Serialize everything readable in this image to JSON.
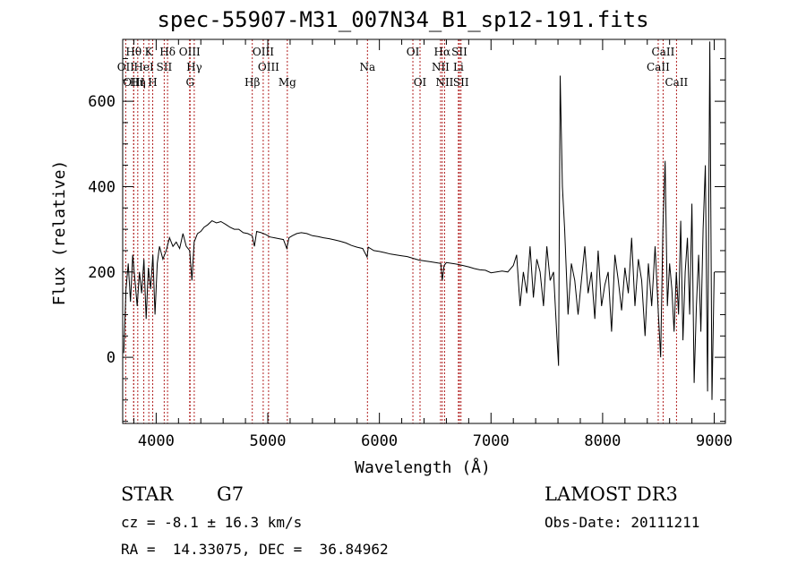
{
  "chart_data": {
    "type": "line",
    "title": "spec-55907-M31_007N34_B1_sp12-191.fits",
    "xlabel": "Wavelength (Å)",
    "ylabel": "Flux (relative)",
    "xlim": [
      3700,
      9100
    ],
    "ylim": [
      -155,
      745
    ],
    "x_ticks": [
      4000,
      5000,
      6000,
      7000,
      8000,
      9000
    ],
    "y_ticks": [
      0,
      200,
      400,
      600
    ],
    "x_tick_labels": [
      "4000",
      "5000",
      "6000",
      "7000",
      "8000",
      "9000"
    ],
    "y_tick_labels": [
      "0",
      "200",
      "400",
      "600"
    ],
    "series": [
      {
        "name": "flux",
        "x": [
          3710,
          3730,
          3750,
          3770,
          3790,
          3810,
          3830,
          3850,
          3870,
          3890,
          3910,
          3930,
          3950,
          3970,
          3990,
          4010,
          4030,
          4060,
          4090,
          4120,
          4150,
          4180,
          4210,
          4240,
          4270,
          4300,
          4320,
          4340,
          4370,
          4400,
          4430,
          4460,
          4500,
          4540,
          4580,
          4620,
          4660,
          4700,
          4740,
          4780,
          4820,
          4860,
          4880,
          4900,
          4940,
          4980,
          5020,
          5060,
          5100,
          5140,
          5170,
          5190,
          5220,
          5260,
          5300,
          5350,
          5400,
          5450,
          5500,
          5550,
          5600,
          5650,
          5700,
          5750,
          5800,
          5850,
          5890,
          5900,
          5950,
          6000,
          6050,
          6100,
          6150,
          6200,
          6250,
          6300,
          6350,
          6400,
          6450,
          6500,
          6550,
          6563,
          6580,
          6600,
          6650,
          6700,
          6750,
          6800,
          6850,
          6900,
          6950,
          7000,
          7050,
          7100,
          7150,
          7200,
          7230,
          7260,
          7290,
          7320,
          7350,
          7380,
          7410,
          7440,
          7470,
          7500,
          7530,
          7560,
          7590,
          7605,
          7620,
          7640,
          7660,
          7690,
          7720,
          7750,
          7780,
          7810,
          7840,
          7870,
          7900,
          7930,
          7960,
          7990,
          8020,
          8050,
          8080,
          8110,
          8140,
          8170,
          8200,
          8230,
          8260,
          8290,
          8320,
          8350,
          8380,
          8410,
          8440,
          8470,
          8500,
          8520,
          8540,
          8560,
          8580,
          8600,
          8620,
          8640,
          8660,
          8680,
          8700,
          8720,
          8740,
          8760,
          8780,
          8800,
          8820,
          8840,
          8860,
          8880,
          8900,
          8920,
          8940,
          8960,
          8980,
          9000
        ],
        "y": [
          10,
          160,
          220,
          130,
          240,
          180,
          120,
          200,
          150,
          230,
          90,
          210,
          160,
          240,
          100,
          220,
          260,
          230,
          250,
          280,
          260,
          270,
          255,
          290,
          260,
          250,
          180,
          270,
          290,
          295,
          305,
          310,
          320,
          315,
          318,
          312,
          305,
          300,
          300,
          292,
          290,
          285,
          260,
          295,
          292,
          288,
          282,
          280,
          278,
          276,
          255,
          280,
          285,
          290,
          292,
          290,
          285,
          283,
          280,
          278,
          275,
          272,
          268,
          262,
          258,
          255,
          235,
          258,
          250,
          248,
          245,
          242,
          240,
          238,
          236,
          232,
          228,
          226,
          224,
          222,
          220,
          180,
          215,
          222,
          220,
          218,
          215,
          212,
          208,
          205,
          204,
          198,
          200,
          202,
          200,
          215,
          240,
          120,
          200,
          150,
          260,
          140,
          230,
          200,
          120,
          260,
          180,
          200,
          50,
          -20,
          660,
          400,
          300,
          100,
          220,
          180,
          100,
          180,
          260,
          150,
          200,
          90,
          250,
          120,
          170,
          200,
          60,
          240,
          180,
          110,
          210,
          150,
          280,
          120,
          230,
          180,
          50,
          220,
          120,
          260,
          100,
          0,
          300,
          460,
          120,
          220,
          160,
          60,
          200,
          100,
          320,
          40,
          200,
          280,
          100,
          360,
          -60,
          120,
          240,
          60,
          300,
          450,
          -80,
          740,
          -100,
          200
        ]
      }
    ],
    "lines": [
      {
        "name": "OII",
        "wave": 3727,
        "row": 2
      },
      {
        "name": "Hθ",
        "wave": 3798,
        "row": 1
      },
      {
        "name": "OIII",
        "wave": 3799,
        "row": 3
      },
      {
        "name": "HeI",
        "wave": 3889,
        "row": 2
      },
      {
        "name": "Hη",
        "wave": 3835,
        "row": 3
      },
      {
        "name": "K",
        "wave": 3934,
        "row": 1
      },
      {
        "name": "SII",
        "wave": 4072,
        "row": 2
      },
      {
        "name": "H",
        "wave": 3969,
        "row": 3
      },
      {
        "name": "Hδ",
        "wave": 4102,
        "row": 1
      },
      {
        "name": "OIII",
        "wave": 4300,
        "row": 1
      },
      {
        "name": "Hγ",
        "wave": 4341,
        "row": 2
      },
      {
        "name": "G",
        "wave": 4304,
        "row": 3
      },
      {
        "name": "OIII",
        "wave": 4959,
        "row": 1
      },
      {
        "name": "OIII",
        "wave": 5007,
        "row": 2
      },
      {
        "name": "Hβ",
        "wave": 4861,
        "row": 3
      },
      {
        "name": "Mg",
        "wave": 5175,
        "row": 3
      },
      {
        "name": "Na",
        "wave": 5893,
        "row": 2
      },
      {
        "name": "OI",
        "wave": 6300,
        "row": 1
      },
      {
        "name": "OI",
        "wave": 6364,
        "row": 3
      },
      {
        "name": "Hα",
        "wave": 6563,
        "row": 1
      },
      {
        "name": "NII",
        "wave": 6548,
        "row": 2
      },
      {
        "name": "NII",
        "wave": 6584,
        "row": 3
      },
      {
        "name": "SII",
        "wave": 6717,
        "row": 1
      },
      {
        "name": "Li",
        "wave": 6708,
        "row": 2
      },
      {
        "name": "SII",
        "wave": 6731,
        "row": 3
      },
      {
        "name": "CaII",
        "wave": 8498,
        "row": 2
      },
      {
        "name": "CaII",
        "wave": 8542,
        "row": 1
      },
      {
        "name": "CaII",
        "wave": 8662,
        "row": 3
      }
    ],
    "line_color": "#b22222"
  },
  "info": {
    "object_class": "STAR",
    "subclass": "G7",
    "survey": "LAMOST DR3",
    "redshift": "cz = -8.1 ± 16.3 km/s",
    "obs_date": "Obs-Date: 20111211",
    "coords": "RA =  14.33075, DEC =  36.84962"
  }
}
